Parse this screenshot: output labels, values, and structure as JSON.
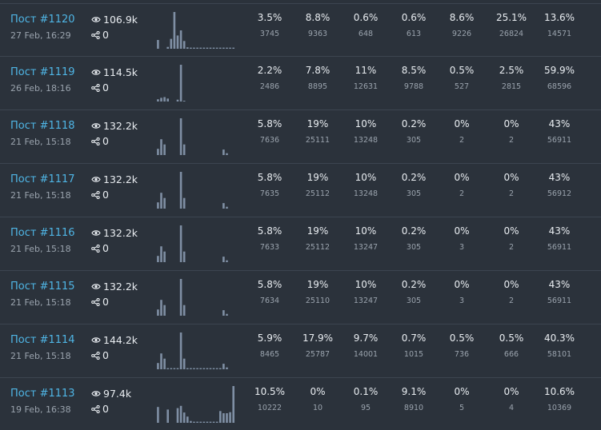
{
  "colors": {
    "background": "#2b323b",
    "link": "#4fb6e6",
    "bar": "#7f8fa4",
    "text": "#e9edf1",
    "muted": "#9aa3ad"
  },
  "icons": {
    "views": "eye-icon",
    "shares": "share-icon"
  },
  "posts": [
    {
      "title": "Пост #1120",
      "date": "27 Feb, 16:29",
      "views": "106.9k",
      "shares": "0",
      "bars": [
        0,
        0.24,
        0,
        0,
        0.05,
        0.27,
        1.0,
        0.36,
        0.5,
        0.21,
        0.04,
        0.03,
        0.03,
        0.03,
        0.03,
        0.03,
        0.03,
        0.03,
        0.03,
        0.03,
        0.03,
        0.03,
        0.03,
        0.03,
        0.03
      ],
      "stats": [
        {
          "pct": "3.5%",
          "count": "3745"
        },
        {
          "pct": "8.8%",
          "count": "9363"
        },
        {
          "pct": "0.6%",
          "count": "648"
        },
        {
          "pct": "0.6%",
          "count": "613"
        },
        {
          "pct": "8.6%",
          "count": "9226"
        },
        {
          "pct": "25.1%",
          "count": "26824"
        },
        {
          "pct": "13.6%",
          "count": "14571"
        }
      ]
    },
    {
      "title": "Пост #1119",
      "date": "26 Feb, 18:16",
      "views": "114.5k",
      "shares": "0",
      "bars": [
        0,
        0.06,
        0.1,
        0.12,
        0.08,
        0,
        0,
        0.05,
        1.0,
        0.02,
        0,
        0,
        0,
        0,
        0,
        0,
        0,
        0,
        0,
        0,
        0,
        0,
        0,
        0,
        0
      ],
      "stats": [
        {
          "pct": "2.2%",
          "count": "2486"
        },
        {
          "pct": "7.8%",
          "count": "8895"
        },
        {
          "pct": "11%",
          "count": "12631"
        },
        {
          "pct": "8.5%",
          "count": "9788"
        },
        {
          "pct": "0.5%",
          "count": "527"
        },
        {
          "pct": "2.5%",
          "count": "2815"
        },
        {
          "pct": "59.9%",
          "count": "68596"
        }
      ]
    },
    {
      "title": "Пост #1118",
      "date": "21 Feb, 15:18",
      "views": "132.2k",
      "shares": "0",
      "bars": [
        0,
        0.17,
        0.43,
        0.29,
        0,
        0,
        0,
        0,
        1.0,
        0.29,
        0,
        0,
        0,
        0,
        0,
        0,
        0,
        0,
        0,
        0,
        0,
        0.15,
        0.05,
        0,
        0
      ],
      "stats": [
        {
          "pct": "5.8%",
          "count": "7636"
        },
        {
          "pct": "19%",
          "count": "25111"
        },
        {
          "pct": "10%",
          "count": "13248"
        },
        {
          "pct": "0.2%",
          "count": "305"
        },
        {
          "pct": "0%",
          "count": "2"
        },
        {
          "pct": "0%",
          "count": "2"
        },
        {
          "pct": "43%",
          "count": "56911"
        }
      ]
    },
    {
      "title": "Пост #1117",
      "date": "21 Feb, 15:18",
      "views": "132.2k",
      "shares": "0",
      "bars": [
        0,
        0.17,
        0.43,
        0.29,
        0,
        0,
        0,
        0,
        1.0,
        0.29,
        0,
        0,
        0,
        0,
        0,
        0,
        0,
        0,
        0,
        0,
        0,
        0.15,
        0.05,
        0,
        0
      ],
      "stats": [
        {
          "pct": "5.8%",
          "count": "7635"
        },
        {
          "pct": "19%",
          "count": "25112"
        },
        {
          "pct": "10%",
          "count": "13248"
        },
        {
          "pct": "0.2%",
          "count": "305"
        },
        {
          "pct": "0%",
          "count": "2"
        },
        {
          "pct": "0%",
          "count": "2"
        },
        {
          "pct": "43%",
          "count": "56912"
        }
      ]
    },
    {
      "title": "Пост #1116",
      "date": "21 Feb, 15:18",
      "views": "132.2k",
      "shares": "0",
      "bars": [
        0,
        0.17,
        0.43,
        0.29,
        0,
        0,
        0,
        0,
        1.0,
        0.29,
        0,
        0,
        0,
        0,
        0,
        0,
        0,
        0,
        0,
        0,
        0,
        0.15,
        0.05,
        0,
        0
      ],
      "stats": [
        {
          "pct": "5.8%",
          "count": "7633"
        },
        {
          "pct": "19%",
          "count": "25112"
        },
        {
          "pct": "10%",
          "count": "13247"
        },
        {
          "pct": "0.2%",
          "count": "305"
        },
        {
          "pct": "0%",
          "count": "3"
        },
        {
          "pct": "0%",
          "count": "2"
        },
        {
          "pct": "43%",
          "count": "56911"
        }
      ]
    },
    {
      "title": "Пост #1115",
      "date": "21 Feb, 15:18",
      "views": "132.2k",
      "shares": "0",
      "bars": [
        0,
        0.17,
        0.43,
        0.29,
        0,
        0,
        0,
        0,
        1.0,
        0.29,
        0,
        0,
        0,
        0,
        0,
        0,
        0,
        0,
        0,
        0,
        0,
        0.15,
        0.05,
        0,
        0
      ],
      "stats": [
        {
          "pct": "5.8%",
          "count": "7634"
        },
        {
          "pct": "19%",
          "count": "25110"
        },
        {
          "pct": "10%",
          "count": "13247"
        },
        {
          "pct": "0.2%",
          "count": "305"
        },
        {
          "pct": "0%",
          "count": "3"
        },
        {
          "pct": "0%",
          "count": "2"
        },
        {
          "pct": "43%",
          "count": "56911"
        }
      ]
    },
    {
      "title": "Пост #1114",
      "date": "21 Feb, 15:18",
      "views": "144.2k",
      "shares": "0",
      "bars": [
        0,
        0.17,
        0.43,
        0.29,
        0.03,
        0.03,
        0.03,
        0.03,
        1.0,
        0.29,
        0.03,
        0.03,
        0.03,
        0.03,
        0.03,
        0.03,
        0.03,
        0.03,
        0.03,
        0.03,
        0.03,
        0.15,
        0.05,
        0,
        0
      ],
      "stats": [
        {
          "pct": "5.9%",
          "count": "8465"
        },
        {
          "pct": "17.9%",
          "count": "25787"
        },
        {
          "pct": "9.7%",
          "count": "14001"
        },
        {
          "pct": "0.7%",
          "count": "1015"
        },
        {
          "pct": "0.5%",
          "count": "736"
        },
        {
          "pct": "0.5%",
          "count": "666"
        },
        {
          "pct": "40.3%",
          "count": "58101"
        }
      ]
    },
    {
      "title": "Пост #1113",
      "date": "19 Feb, 16:38",
      "views": "97.4k",
      "shares": "0",
      "bars": [
        0,
        0.43,
        0,
        0,
        0.36,
        0,
        0,
        0.4,
        0.46,
        0.28,
        0.17,
        0.05,
        0.03,
        0.03,
        0.03,
        0.03,
        0.03,
        0.03,
        0.03,
        0.03,
        0.32,
        0.26,
        0.26,
        0.29,
        1.0
      ],
      "stats": [
        {
          "pct": "10.5%",
          "count": "10222"
        },
        {
          "pct": "0%",
          "count": "10"
        },
        {
          "pct": "0.1%",
          "count": "95"
        },
        {
          "pct": "9.1%",
          "count": "8910"
        },
        {
          "pct": "0%",
          "count": "5"
        },
        {
          "pct": "0%",
          "count": "4"
        },
        {
          "pct": "10.6%",
          "count": "10369"
        }
      ]
    }
  ]
}
